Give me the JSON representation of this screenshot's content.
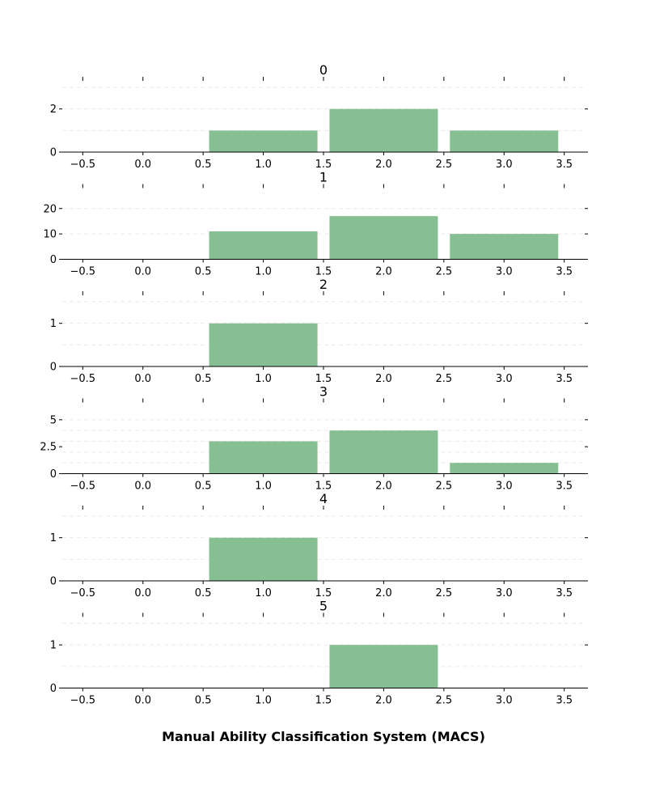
{
  "figure": {
    "xlabel": "Manual Ability Classification System (MACS)",
    "bar_color": "#86bf91",
    "grid_color": "#f2e6e6"
  },
  "chart_data": [
    {
      "type": "bar",
      "title": "0",
      "x": [
        1,
        2,
        3
      ],
      "values": [
        1,
        2,
        1
      ],
      "bar_width": 0.9,
      "xlim": [
        -0.67,
        3.67
      ],
      "ylim": [
        0,
        2.1
      ],
      "yticks": [
        0,
        2
      ],
      "ygrid": [
        1,
        2,
        3
      ],
      "xticks": [
        -0.5,
        0.0,
        0.5,
        1.0,
        1.5,
        2.0,
        2.5,
        3.0,
        3.5
      ],
      "grid": true
    },
    {
      "type": "bar",
      "title": "1",
      "x": [
        1,
        2,
        3
      ],
      "values": [
        11,
        17,
        10
      ],
      "bar_width": 0.9,
      "xlim": [
        -0.67,
        3.67
      ],
      "ylim": [
        0,
        17.85
      ],
      "yticks": [
        0,
        10,
        20
      ],
      "ygrid": [
        10,
        20
      ],
      "xticks": [
        -0.5,
        0.0,
        0.5,
        1.0,
        1.5,
        2.0,
        2.5,
        3.0,
        3.5
      ],
      "grid": true
    },
    {
      "type": "bar",
      "title": "2",
      "x": [
        1,
        2,
        3
      ],
      "values": [
        1,
        0,
        0
      ],
      "bar_width": 0.9,
      "xlim": [
        -0.67,
        3.67
      ],
      "ylim": [
        0,
        1.05
      ],
      "yticks": [
        0,
        1
      ],
      "ygrid": [
        0.5,
        1,
        1.5
      ],
      "xticks": [
        -0.5,
        0.0,
        0.5,
        1.0,
        1.5,
        2.0,
        2.5,
        3.0,
        3.5
      ],
      "grid": true
    },
    {
      "type": "bar",
      "title": "3",
      "x": [
        1,
        2,
        3
      ],
      "values": [
        3,
        4,
        1
      ],
      "bar_width": 0.9,
      "xlim": [
        -0.67,
        3.67
      ],
      "ylim": [
        0,
        4.2
      ],
      "yticks": [
        0,
        2.5,
        5
      ],
      "ygrid": [
        1,
        2,
        3,
        4,
        5
      ],
      "xticks": [
        -0.5,
        0.0,
        0.5,
        1.0,
        1.5,
        2.0,
        2.5,
        3.0,
        3.5
      ],
      "grid": true
    },
    {
      "type": "bar",
      "title": "4",
      "x": [
        1,
        2,
        3
      ],
      "values": [
        1,
        0,
        0
      ],
      "bar_width": 0.9,
      "xlim": [
        -0.67,
        3.67
      ],
      "ylim": [
        0,
        1.05
      ],
      "yticks": [
        0,
        1
      ],
      "ygrid": [
        0.5,
        1,
        1.5
      ],
      "xticks": [
        -0.5,
        0.0,
        0.5,
        1.0,
        1.5,
        2.0,
        2.5,
        3.0,
        3.5
      ],
      "grid": true
    },
    {
      "type": "bar",
      "title": "5",
      "x": [
        1,
        2,
        3
      ],
      "values": [
        0,
        1,
        0
      ],
      "bar_width": 0.9,
      "xlim": [
        -0.67,
        3.67
      ],
      "ylim": [
        0,
        1.05
      ],
      "yticks": [
        0,
        1
      ],
      "ygrid": [
        0.5,
        1,
        1.5
      ],
      "xticks": [
        -0.5,
        0.0,
        0.5,
        1.0,
        1.5,
        2.0,
        2.5,
        3.0,
        3.5
      ],
      "grid": true
    }
  ]
}
